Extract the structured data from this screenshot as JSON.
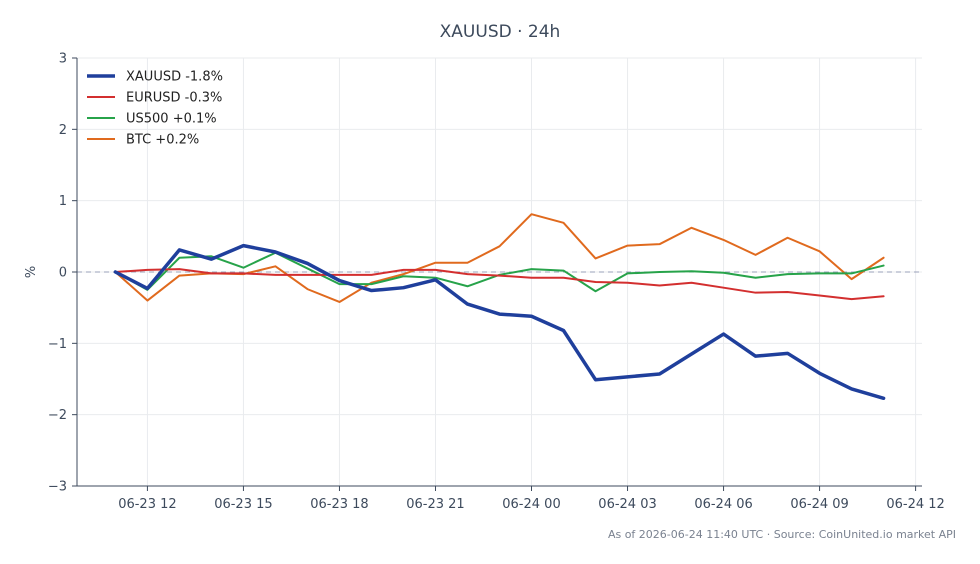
{
  "chart_data": {
    "type": "line",
    "title": "XAUUSD · 24h",
    "xlabel": "",
    "ylabel": "%",
    "ylim": [
      -3,
      3
    ],
    "yticks": [
      -3,
      -2,
      -1,
      0,
      1,
      2,
      3
    ],
    "ytick_labels": [
      "−3",
      "−2",
      "−1",
      "0",
      "1",
      "2",
      "3"
    ],
    "xlim": [
      -1.2,
      25.2
    ],
    "xticks": [
      1,
      4,
      7,
      10,
      13,
      16,
      19,
      22,
      25
    ],
    "xtick_labels": [
      "06-23 12",
      "06-23 15",
      "06-23 18",
      "06-23 21",
      "06-24 00",
      "06-24 03",
      "06-24 06",
      "06-24 09",
      "06-24 12"
    ],
    "x_hours": [
      0,
      1,
      2,
      3,
      4,
      5,
      6,
      7,
      8,
      9,
      10,
      11,
      12,
      13,
      14,
      15,
      16,
      17,
      18,
      19,
      20,
      21,
      22,
      23,
      24
    ],
    "grid": true,
    "legend_position": "top-left",
    "reference_line": 0,
    "series": [
      {
        "name": "XAUUSD -1.8%",
        "color": "#1f3f9c",
        "width": 3.5,
        "values": [
          0,
          -0.23,
          0.31,
          0.18,
          0.37,
          0.28,
          0.12,
          -0.12,
          -0.26,
          -0.22,
          -0.11,
          -0.45,
          -0.59,
          -0.62,
          -0.82,
          -1.51,
          -1.47,
          -1.43,
          -1.15,
          -0.87,
          -1.18,
          -1.14,
          -1.42,
          -1.64,
          -1.77
        ]
      },
      {
        "name": "EURUSD -0.3%",
        "color": "#d32f2f",
        "width": 2,
        "values": [
          0,
          0.03,
          0.04,
          -0.02,
          -0.02,
          -0.04,
          -0.04,
          -0.04,
          -0.04,
          0.03,
          0.03,
          -0.03,
          -0.05,
          -0.08,
          -0.08,
          -0.14,
          -0.15,
          -0.19,
          -0.15,
          -0.22,
          -0.29,
          -0.28,
          -0.33,
          -0.38,
          -0.34
        ]
      },
      {
        "name": "US500 +0.1%",
        "color": "#27a34a",
        "width": 2,
        "values": [
          0,
          -0.25,
          0.2,
          0.22,
          0.06,
          0.27,
          0.05,
          -0.17,
          -0.17,
          -0.06,
          -0.08,
          -0.2,
          -0.04,
          0.04,
          0.02,
          -0.27,
          -0.02,
          0.0,
          0.01,
          -0.01,
          -0.08,
          -0.03,
          -0.02,
          -0.02,
          0.09
        ]
      },
      {
        "name": "BTC +0.2%",
        "color": "#e06a1e",
        "width": 2,
        "values": [
          0,
          -0.4,
          -0.05,
          -0.02,
          -0.03,
          0.08,
          -0.24,
          -0.42,
          -0.15,
          -0.03,
          0.13,
          0.13,
          0.36,
          0.81,
          0.69,
          0.19,
          0.37,
          0.39,
          0.62,
          0.45,
          0.24,
          0.48,
          0.29,
          -0.1,
          0.2
        ]
      }
    ]
  },
  "footnote": "As of 2026-06-24 11:40 UTC · Source: CoinUnited.io market API"
}
